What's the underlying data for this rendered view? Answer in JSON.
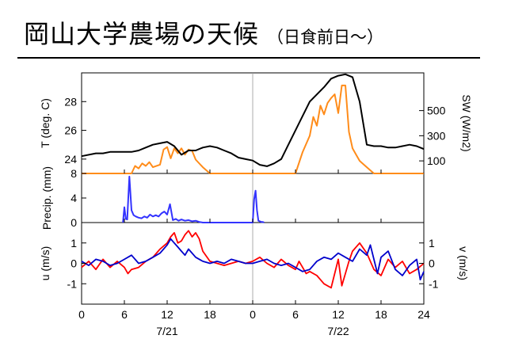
{
  "slide": {
    "title": "岡山大学農場の天候",
    "subtitle": "（日食前日～）"
  },
  "chart_data": [
    {
      "type": "line",
      "panel": "temperature-shortwave",
      "x_unit": "hour",
      "xlim": [
        0,
        48
      ],
      "grid": false,
      "series": [
        {
          "name": "T (deg. C)",
          "axis": "left",
          "ylim": [
            23,
            30
          ],
          "color": "#000000",
          "x": [
            0,
            2,
            3,
            4,
            5,
            6,
            7,
            8,
            9,
            10,
            11,
            12,
            13,
            14,
            15,
            16,
            17,
            18,
            19,
            20,
            21,
            22,
            23,
            24,
            25,
            26,
            27,
            28,
            29,
            30,
            31,
            32,
            33,
            34,
            35,
            36,
            37,
            38,
            39,
            40,
            41,
            42,
            43,
            44,
            45,
            46,
            47,
            48
          ],
          "y": [
            24.2,
            24.4,
            24.4,
            24.5,
            24.5,
            24.5,
            24.5,
            24.6,
            24.8,
            25.0,
            25.1,
            25.2,
            24.9,
            24.3,
            24.6,
            24.6,
            24.8,
            24.9,
            24.8,
            24.6,
            24.4,
            24.1,
            24.0,
            23.9,
            23.6,
            23.5,
            23.7,
            24.0,
            25.0,
            26.0,
            27.0,
            28.0,
            28.5,
            29.0,
            29.6,
            29.8,
            29.9,
            29.7,
            28.0,
            25.0,
            24.9,
            24.9,
            24.8,
            24.8,
            24.9,
            25.0,
            24.9,
            24.7
          ]
        },
        {
          "name": "SW (W/m2)",
          "axis": "right",
          "ylim": [
            0,
            800
          ],
          "color": "#ff8c1a",
          "x": [
            0,
            7,
            7.5,
            8,
            8.5,
            9,
            9.5,
            10,
            11,
            11.5,
            12,
            12.5,
            13,
            13.5,
            14,
            14.5,
            15,
            15.5,
            16,
            17,
            18,
            24,
            30,
            31,
            32,
            32.5,
            33,
            33.5,
            34,
            34.5,
            35,
            35.5,
            36,
            36.5,
            37,
            37.5,
            38,
            38.5,
            39,
            40,
            41,
            42,
            48
          ],
          "y": [
            0,
            0,
            60,
            40,
            80,
            60,
            90,
            50,
            70,
            190,
            210,
            120,
            200,
            160,
            200,
            150,
            190,
            180,
            110,
            50,
            0,
            0,
            0,
            170,
            300,
            450,
            380,
            540,
            470,
            560,
            600,
            630,
            480,
            700,
            700,
            330,
            200,
            150,
            100,
            50,
            0,
            0,
            0
          ]
        }
      ],
      "left_ticks": [
        "24",
        "26",
        "28"
      ],
      "right_ticks": [
        "100",
        "300",
        "500"
      ]
    },
    {
      "type": "line",
      "panel": "precipitation",
      "ylabel": "Precip. (mm)",
      "xlim": [
        0,
        48
      ],
      "ylim": [
        0,
        8
      ],
      "grid": false,
      "y_ticks": [
        "0",
        "4",
        "8"
      ],
      "series": [
        {
          "color": "#3333ff",
          "x": [
            5.8,
            6.0,
            6.2,
            6.4,
            6.7,
            7.0,
            7.3,
            7.6,
            8.0,
            8.4,
            8.8,
            9.2,
            9.6,
            10.0,
            10.4,
            10.8,
            11.2,
            11.6,
            12.0,
            12.4,
            12.8,
            13.2,
            13.6,
            14.0,
            14.5,
            15.0,
            15.5,
            16.0,
            16.5,
            17.0,
            17.5,
            18.0,
            18.5,
            19.0,
            19.5,
            20.0,
            20.5,
            21.0,
            21.5,
            22.0,
            22.5,
            23.0,
            23.5,
            24.0,
            24.2,
            24.4,
            24.6,
            24.8,
            25.0,
            25.2,
            25.4,
            25.6
          ],
          "y": [
            0,
            2.5,
            0.6,
            0.5,
            7.5,
            2.0,
            1.2,
            1.0,
            0.8,
            0.7,
            1.0,
            0.8,
            1.3,
            1.0,
            1.2,
            1.0,
            1.5,
            1.8,
            1.3,
            3.0,
            0.4,
            0.6,
            0.3,
            0.5,
            0.3,
            0.4,
            0.2,
            0.3,
            0.1,
            0,
            0,
            0,
            0,
            0,
            0,
            0,
            0,
            0,
            0,
            0,
            0,
            0,
            0,
            0,
            3.8,
            5.2,
            2.0,
            0.3,
            0.2,
            0.1,
            0.1,
            0
          ]
        }
      ]
    },
    {
      "type": "line",
      "panel": "wind",
      "xlim": [
        0,
        48
      ],
      "x_ticks": [
        "0",
        "6",
        "12",
        "18",
        "0",
        "6",
        "12",
        "18",
        "24"
      ],
      "x_date_labels": [
        "7/21",
        "7/22"
      ],
      "left_label": "u (m/s)",
      "right_label": "v (m/s)",
      "ylim": [
        -2,
        2
      ],
      "left_ticks": [
        "-1",
        "0",
        "1"
      ],
      "right_ticks": [
        "-1",
        "0",
        "1"
      ],
      "grid": false,
      "series": [
        {
          "name": "u",
          "color": "#ff0000",
          "x": [
            0,
            1,
            2,
            3,
            4,
            5,
            6,
            6.5,
            7,
            8,
            9,
            10,
            11,
            12,
            12.5,
            13,
            13.5,
            14,
            14.5,
            15,
            15.5,
            16,
            16.5,
            17,
            18,
            19,
            20,
            21,
            22,
            23,
            24,
            25,
            26,
            27,
            28,
            29,
            30,
            30.5,
            31,
            31.5,
            32,
            33,
            34,
            35,
            36,
            36.5,
            37,
            37.5,
            38,
            39,
            40,
            41,
            42,
            43,
            44,
            45,
            46,
            47,
            48
          ],
          "y": [
            -0.2,
            0.1,
            -0.3,
            0.2,
            -0.2,
            0.1,
            -0.2,
            -0.5,
            -0.3,
            -0.2,
            0.1,
            0.3,
            0.7,
            1.0,
            1.3,
            1.5,
            1.0,
            1.1,
            1.4,
            1.6,
            1.3,
            1.5,
            1.2,
            0.6,
            0.1,
            0.0,
            -0.1,
            0.0,
            0.1,
            0.0,
            0.1,
            0.3,
            0.0,
            -0.2,
            0.2,
            -0.1,
            -0.3,
            0.1,
            -0.2,
            -0.5,
            -0.4,
            -0.6,
            -1.0,
            -1.2,
            0.2,
            -1.1,
            -0.5,
            0.1,
            0.6,
            1.0,
            0.5,
            -0.3,
            -0.6,
            0.2,
            -0.2,
            0.1,
            -0.5,
            -0.3,
            0.0
          ]
        },
        {
          "name": "v",
          "color": "#0000cc",
          "x": [
            0,
            1,
            2,
            3,
            4,
            5,
            6,
            7,
            8,
            9,
            10,
            11,
            12,
            12.5,
            13,
            13.5,
            14,
            14.5,
            15,
            16,
            17,
            18,
            19,
            20,
            21,
            22,
            23,
            24,
            25,
            26,
            27,
            28,
            29,
            30,
            31,
            32,
            33,
            34,
            35,
            36,
            37,
            38,
            39,
            40,
            40.5,
            41,
            41.5,
            42,
            43,
            44,
            45,
            46,
            47,
            47.5,
            48
          ],
          "y": [
            0.1,
            -0.1,
            0.2,
            0.1,
            -0.1,
            0.0,
            0.2,
            0.4,
            0.0,
            0.1,
            0.3,
            0.5,
            0.9,
            1.2,
            1.0,
            0.8,
            0.6,
            0.4,
            0.7,
            0.3,
            0.1,
            0.0,
            0.1,
            0.0,
            0.2,
            0.1,
            0.0,
            0.0,
            0.1,
            0.2,
            0.0,
            -0.1,
            0.0,
            -0.2,
            -0.4,
            -0.3,
            0.1,
            0.3,
            0.2,
            0.5,
            0.3,
            0.1,
            0.7,
            0.4,
            0.9,
            0.2,
            -0.5,
            0.3,
            0.6,
            -0.3,
            -0.6,
            -0.1,
            0.2,
            -0.8,
            -0.4
          ]
        }
      ]
    }
  ]
}
